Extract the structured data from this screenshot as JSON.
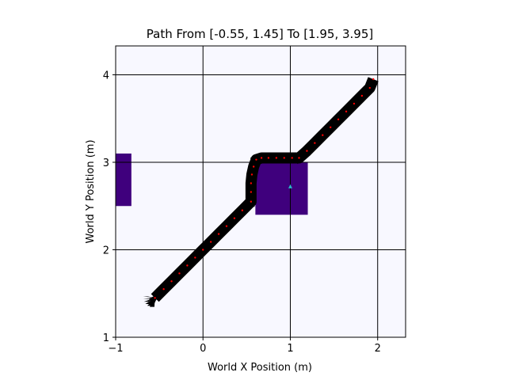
{
  "chart_data": {
    "type": "scatter",
    "title": "Path From [-0.55, 1.45] To [1.95, 3.95]",
    "xlabel": "World X Position (m)",
    "ylabel": "World Y Position (m)",
    "xlim": [
      -1.0,
      2.32
    ],
    "ylim": [
      1.0,
      4.33
    ],
    "xticks": [
      -1,
      0,
      1,
      2
    ],
    "yticks": [
      1,
      2,
      3,
      4
    ],
    "xtick_labels": [
      "−1",
      "0",
      "1",
      "2"
    ],
    "ytick_labels": [
      "1",
      "2",
      "3",
      "4"
    ],
    "grid": true,
    "start": [
      -0.55,
      1.45
    ],
    "goal": [
      1.95,
      3.95
    ],
    "obstacles": [
      {
        "x": [
          -1.0,
          -0.82
        ],
        "y": [
          2.5,
          3.1
        ]
      },
      {
        "x": [
          0.6,
          1.2
        ],
        "y": [
          2.4,
          3.0
        ]
      }
    ],
    "marker_point": [
      1.0,
      2.72
    ],
    "path_points": [
      [
        -0.55,
        1.45
      ],
      [
        -0.45,
        1.55
      ],
      [
        -0.36,
        1.64
      ],
      [
        -0.27,
        1.73
      ],
      [
        -0.18,
        1.82
      ],
      [
        -0.09,
        1.91
      ],
      [
        0.0,
        2.0
      ],
      [
        0.09,
        2.09
      ],
      [
        0.18,
        2.18
      ],
      [
        0.27,
        2.27
      ],
      [
        0.36,
        2.36
      ],
      [
        0.45,
        2.45
      ],
      [
        0.55,
        2.55
      ],
      [
        0.55,
        2.66
      ],
      [
        0.55,
        2.76
      ],
      [
        0.56,
        2.86
      ],
      [
        0.58,
        2.95
      ],
      [
        0.61,
        3.03
      ],
      [
        0.67,
        3.05
      ],
      [
        0.75,
        3.05
      ],
      [
        0.84,
        3.05
      ],
      [
        0.93,
        3.05
      ],
      [
        1.02,
        3.05
      ],
      [
        1.1,
        3.05
      ],
      [
        1.19,
        3.13
      ],
      [
        1.28,
        3.22
      ],
      [
        1.37,
        3.31
      ],
      [
        1.46,
        3.4
      ],
      [
        1.55,
        3.49
      ],
      [
        1.64,
        3.58
      ],
      [
        1.73,
        3.67
      ],
      [
        1.82,
        3.76
      ],
      [
        1.91,
        3.85
      ],
      [
        1.95,
        3.95
      ]
    ],
    "colors": {
      "background": "#f8f8ff",
      "obstacle": "#3f007d",
      "path": "#000000",
      "path_dots": "#ff0000",
      "marker": "#29b6c8",
      "grid": "#000000"
    }
  }
}
